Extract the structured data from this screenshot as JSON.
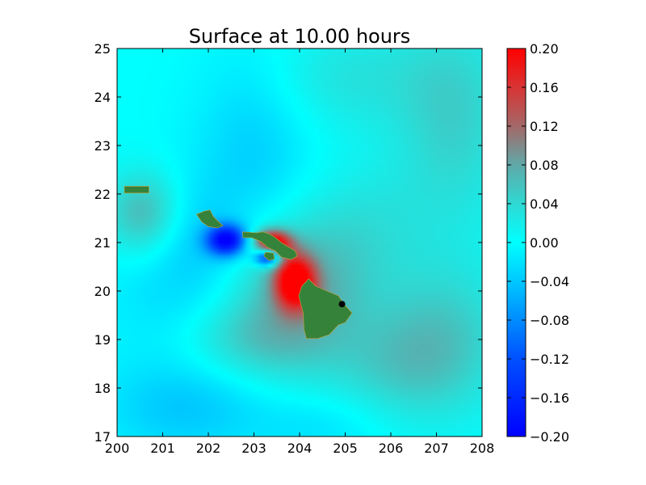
{
  "chart_data": {
    "type": "heatmap",
    "title": "Surface at 10.00 hours",
    "xlabel": "",
    "ylabel": "",
    "xlim": [
      200,
      208
    ],
    "ylim": [
      17,
      25
    ],
    "x_ticks": [
      "200",
      "201",
      "202",
      "203",
      "204",
      "205",
      "206",
      "207",
      "208"
    ],
    "y_ticks": [
      "17",
      "18",
      "19",
      "20",
      "21",
      "22",
      "23",
      "24",
      "25"
    ],
    "colorbar": {
      "range": [
        -0.2,
        0.2
      ],
      "ticks": [
        "0.20",
        "0.16",
        "0.12",
        "0.08",
        "0.04",
        "0.00",
        "−0.04",
        "−0.08",
        "−0.12",
        "−0.16",
        "−0.20"
      ],
      "tick_values": [
        0.2,
        0.16,
        0.12,
        0.08,
        0.04,
        0.0,
        -0.04,
        -0.08,
        -0.12,
        -0.16,
        -0.2
      ],
      "stops": [
        {
          "value": -0.2,
          "color": "#0000ff"
        },
        {
          "value": -0.12,
          "color": "#0050ff"
        },
        {
          "value": -0.04,
          "color": "#00c8ff"
        },
        {
          "value": 0.0,
          "color": "#00ffff"
        },
        {
          "value": 0.04,
          "color": "#2fd9d3"
        },
        {
          "value": 0.08,
          "color": "#60a8a8"
        },
        {
          "value": 0.12,
          "color": "#a46868"
        },
        {
          "value": 0.16,
          "color": "#d83434"
        },
        {
          "value": 0.2,
          "color": "#ff0000"
        }
      ]
    },
    "field_anomalies": [
      {
        "lon": 202.4,
        "lat": 21.05,
        "value": -0.2,
        "sx": 0.3,
        "sy": 0.22
      },
      {
        "lon": 203.3,
        "lat": 20.7,
        "value": -0.2,
        "sx": 0.2,
        "sy": 0.13
      },
      {
        "lon": 203.4,
        "lat": 21.0,
        "value": 0.2,
        "sx": 0.28,
        "sy": 0.18
      },
      {
        "lon": 203.9,
        "lat": 20.2,
        "value": 0.2,
        "sx": 0.3,
        "sy": 0.38
      },
      {
        "lon": 204.0,
        "lat": 20.0,
        "value": 0.08,
        "sx": 1.0,
        "sy": 1.1
      },
      {
        "lon": 203.0,
        "lat": 23.0,
        "value": -0.035,
        "sx": 0.9,
        "sy": 1.6
      },
      {
        "lon": 201.6,
        "lat": 21.2,
        "value": -0.03,
        "sx": 0.7,
        "sy": 0.8
      },
      {
        "lon": 200.6,
        "lat": 21.6,
        "value": 0.07,
        "sx": 0.6,
        "sy": 0.6
      },
      {
        "lon": 202.8,
        "lat": 19.0,
        "value": 0.04,
        "sx": 1.0,
        "sy": 0.6
      },
      {
        "lon": 201.2,
        "lat": 19.8,
        "value": -0.02,
        "sx": 1.2,
        "sy": 0.9
      },
      {
        "lon": 207.4,
        "lat": 23.5,
        "value": 0.045,
        "sx": 0.9,
        "sy": 1.6
      },
      {
        "lon": 207.2,
        "lat": 19.0,
        "value": 0.05,
        "sx": 1.0,
        "sy": 1.1
      },
      {
        "lon": 206.0,
        "lat": 18.5,
        "value": 0.035,
        "sx": 1.0,
        "sy": 0.8
      },
      {
        "lon": 201.5,
        "lat": 17.6,
        "value": -0.04,
        "sx": 1.3,
        "sy": 0.7
      },
      {
        "lon": 204.5,
        "lat": 17.2,
        "value": -0.02,
        "sx": 1.0,
        "sy": 0.5
      },
      {
        "lon": 205.6,
        "lat": 21.3,
        "value": 0.025,
        "sx": 0.9,
        "sy": 1.0
      },
      {
        "lon": 205.0,
        "lat": 24.4,
        "value": 0.03,
        "sx": 1.5,
        "sy": 0.8
      }
    ],
    "land_color": "#35823a",
    "land": [
      {
        "name": "niihau-kauai",
        "points": [
          [
            200.16,
            22.16
          ],
          [
            200.7,
            22.16
          ],
          [
            200.7,
            22.02
          ],
          [
            200.16,
            22.02
          ]
        ]
      },
      {
        "name": "oahu",
        "points": [
          [
            201.74,
            21.58
          ],
          [
            201.92,
            21.65
          ],
          [
            202.04,
            21.67
          ],
          [
            202.1,
            21.55
          ],
          [
            202.2,
            21.45
          ],
          [
            202.32,
            21.35
          ],
          [
            202.2,
            21.3
          ],
          [
            202.0,
            21.33
          ],
          [
            201.86,
            21.42
          ]
        ]
      },
      {
        "name": "molokai-maui",
        "points": [
          [
            202.75,
            21.22
          ],
          [
            203.05,
            21.2
          ],
          [
            203.2,
            21.22
          ],
          [
            203.35,
            21.17
          ],
          [
            203.47,
            21.1
          ],
          [
            203.6,
            21.0
          ],
          [
            203.73,
            20.92
          ],
          [
            203.9,
            20.83
          ],
          [
            203.95,
            20.72
          ],
          [
            203.82,
            20.65
          ],
          [
            203.6,
            20.7
          ],
          [
            203.48,
            20.82
          ],
          [
            203.3,
            20.9
          ],
          [
            203.15,
            21.02
          ],
          [
            202.95,
            21.1
          ],
          [
            202.76,
            21.1
          ]
        ]
      },
      {
        "name": "lanai",
        "points": [
          [
            203.25,
            20.8
          ],
          [
            203.43,
            20.78
          ],
          [
            203.45,
            20.66
          ],
          [
            203.33,
            20.63
          ],
          [
            203.22,
            20.72
          ]
        ]
      },
      {
        "name": "hawaii",
        "points": [
          [
            204.2,
            20.25
          ],
          [
            204.35,
            20.1
          ],
          [
            204.6,
            20.0
          ],
          [
            204.85,
            19.9
          ],
          [
            205.0,
            19.7
          ],
          [
            205.15,
            19.55
          ],
          [
            205.0,
            19.35
          ],
          [
            204.85,
            19.3
          ],
          [
            204.65,
            19.1
          ],
          [
            204.4,
            19.02
          ],
          [
            204.15,
            19.02
          ],
          [
            204.1,
            19.2
          ],
          [
            204.08,
            19.55
          ],
          [
            203.98,
            19.9
          ],
          [
            204.05,
            20.1
          ]
        ]
      }
    ],
    "marker": {
      "lon": 204.93,
      "lat": 19.73,
      "color": "#000000"
    }
  }
}
